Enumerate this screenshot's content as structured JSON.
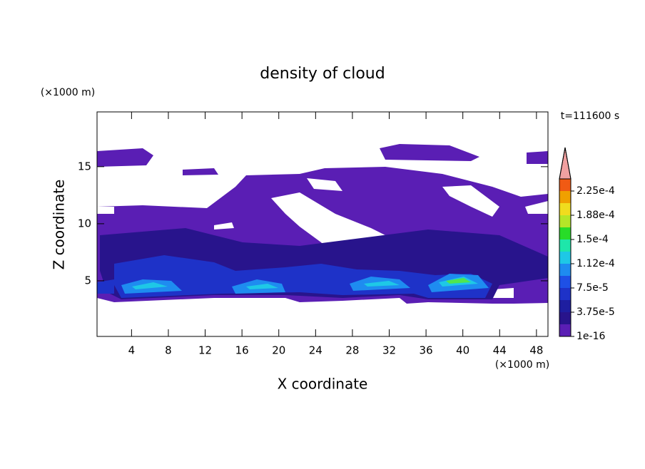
{
  "chart_data": {
    "type": "contour",
    "title": "density of cloud",
    "annotation": "t=111600 s",
    "x_label": "X coordinate",
    "y_label": "Z coordinate",
    "x_unit": "(×1000 m)",
    "y_unit": "(×1000 m)",
    "xlim": [
      0.25,
      49.25
    ],
    "ylim": [
      0.125,
      19.8
    ],
    "xticks": [
      4,
      8,
      12,
      16,
      20,
      24,
      28,
      32,
      36,
      40,
      44,
      48
    ],
    "yticks": [
      5,
      10,
      15
    ],
    "colorbar": {
      "levels": [
        {
          "value": 1e-16,
          "label": "1e-16"
        },
        {
          "value": 3.75e-05,
          "label": "3.75e-5"
        },
        {
          "value": 7.5e-05,
          "label": "7.5e-5"
        },
        {
          "value": 0.000112,
          "label": "1.12e-4"
        },
        {
          "value": 0.00015,
          "label": "1.5e-4"
        },
        {
          "value": 0.000188,
          "label": "1.88e-4"
        },
        {
          "value": 0.000225,
          "label": "2.25e-4"
        }
      ],
      "colors": [
        "#5a1eb4",
        "#28148c",
        "#1e1ea0",
        "#1e32c8",
        "#1e50e6",
        "#1e8cf0",
        "#1ec8e6",
        "#1ee6aa",
        "#28dc28",
        "#b4e628",
        "#f0dc1e",
        "#f0a000",
        "#f05a14"
      ],
      "over_color": "#f0a0a0"
    }
  }
}
